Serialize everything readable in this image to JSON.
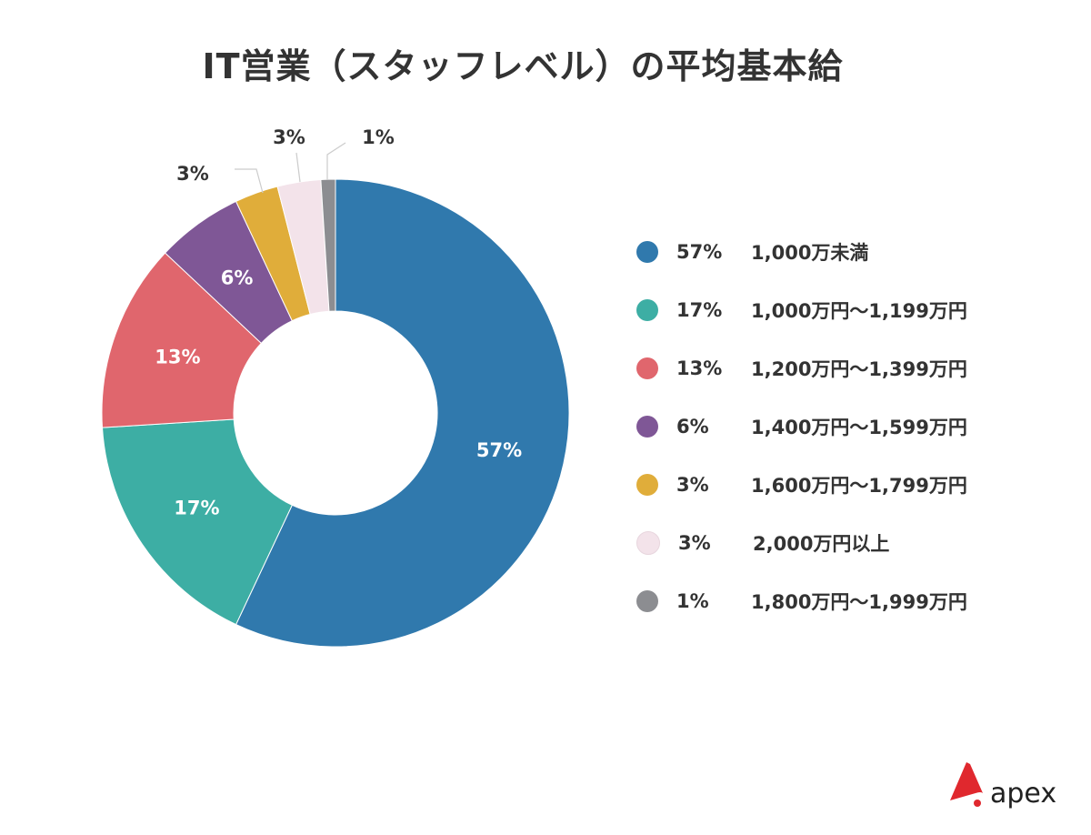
{
  "title": "IT営業（スタッフレベル）の平均基本給",
  "chart_data": {
    "type": "pie",
    "donut": true,
    "title": "IT営業（スタッフレベル）の平均基本給",
    "legend_position": "right",
    "slices": [
      {
        "label": "1,000万未満",
        "value": 57,
        "pct_label": "57%",
        "color": "#3079ad"
      },
      {
        "label": "1,000万円〜1,199万円",
        "value": 17,
        "pct_label": "17%",
        "color": "#3daea4"
      },
      {
        "label": "1,200万円〜1,399万円",
        "value": 13,
        "pct_label": "13%",
        "color": "#e0666d"
      },
      {
        "label": "1,400万円〜1,599万円",
        "value": 6,
        "pct_label": "6%",
        "color": "#7f5796"
      },
      {
        "label": "1,600万円〜1,799万円",
        "value": 3,
        "pct_label": "3%",
        "color": "#e0ad3a"
      },
      {
        "label": "2,000万円以上",
        "value": 3,
        "pct_label": "3%",
        "color": "#f3e3ea"
      },
      {
        "label": "1,800万円〜1,999万円",
        "value": 1,
        "pct_label": "1%",
        "color": "#8c8d91"
      }
    ]
  },
  "logo": {
    "text": "apex",
    "color": "#e0282e"
  }
}
